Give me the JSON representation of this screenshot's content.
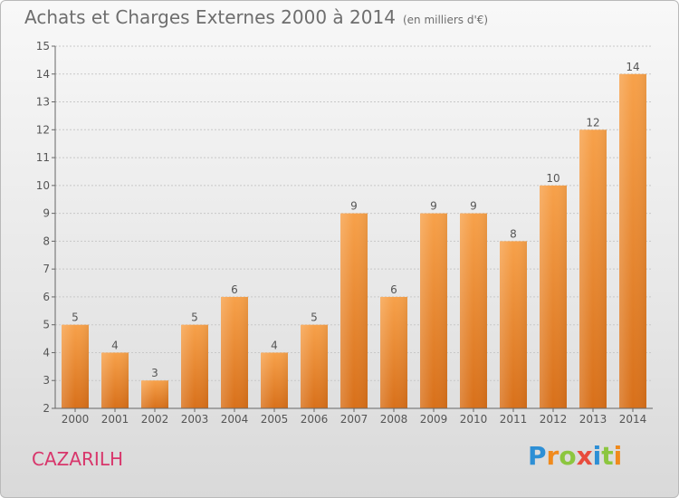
{
  "header": {
    "title": "Achats et Charges Externes 2000 à 2014",
    "unit": "(en milliers d'€)"
  },
  "footer": {
    "city": "CAZARILH"
  },
  "logo": {
    "letters": [
      "P",
      "r",
      "o",
      "x",
      "i",
      "t",
      "i"
    ],
    "colors": [
      "#2d8fd5",
      "#f08a1c",
      "#8cc63f",
      "#e84c3d",
      "#2d8fd5",
      "#8cc63f",
      "#f08a1c"
    ]
  },
  "chart_data": {
    "type": "bar",
    "categories": [
      "2000",
      "2001",
      "2002",
      "2003",
      "2004",
      "2005",
      "2006",
      "2007",
      "2008",
      "2009",
      "2010",
      "2011",
      "2012",
      "2013",
      "2014"
    ],
    "values": [
      5,
      4,
      3,
      5,
      6,
      4,
      5,
      9,
      6,
      9,
      9,
      8,
      10,
      12,
      14
    ],
    "title": "Achats et Charges Externes 2000 à 2014",
    "ylim": [
      2,
      15
    ],
    "yticks": [
      2,
      3,
      4,
      5,
      6,
      7,
      8,
      9,
      10,
      11,
      12,
      13,
      14,
      15
    ],
    "grid": true,
    "bar_color": "#f0963a"
  }
}
